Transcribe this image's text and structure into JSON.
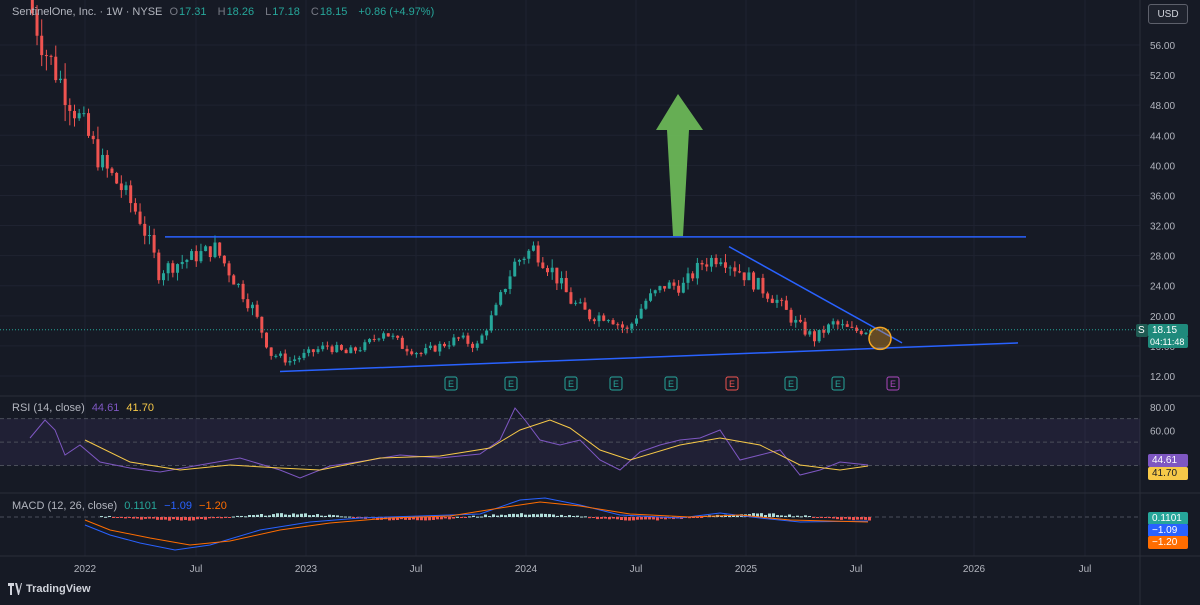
{
  "header": {
    "symbol": "SentinelOne, Inc. · 1W · NYSE",
    "open_label": "O",
    "open": "17.31",
    "high_label": "H",
    "high": "18.26",
    "low_label": "L",
    "low": "17.18",
    "close_label": "C",
    "close": "18.15",
    "change": "+0.86 (+4.97%)"
  },
  "currency_button": "USD",
  "price_axis": [
    "56.00",
    "52.00",
    "48.00",
    "44.00",
    "40.00",
    "36.00",
    "32.00",
    "28.00",
    "24.00",
    "20.00",
    "16.00",
    "12.00"
  ],
  "price_badge": {
    "symbol": "S",
    "price": "18.15",
    "countdown": "04:11:48"
  },
  "earnings_markers": [
    "E",
    "E",
    "E",
    "E",
    "E",
    "E",
    "E",
    "E",
    "E"
  ],
  "time_axis": [
    "2022",
    "Jul",
    "2023",
    "Jul",
    "2024",
    "Jul",
    "2025",
    "Jul",
    "2026",
    "Jul"
  ],
  "rsi": {
    "label": "RSI (14, close)",
    "value": "44.61",
    "ma": "41.70",
    "axis": [
      "80.00",
      "60.00"
    ]
  },
  "macd": {
    "label": "MACD (12, 26, close)",
    "hist": "0.1101",
    "macd": "−1.09",
    "signal": "−1.20"
  },
  "brand": "TradingView",
  "colors": {
    "background": "#161a25",
    "up": "#26a69a",
    "down": "#ef5350",
    "trendline": "#2962ff",
    "arrow": "#6fbf5a",
    "circle": "#f5a623",
    "rsi_line": "#7e57c2",
    "rsi_ma": "#f7c948",
    "macd": "#2962ff",
    "signal": "#ff6d00"
  },
  "chart_data": {
    "type": "candlestick",
    "title": "SentinelOne, Inc. · 1W · NYSE",
    "ylim": [
      10.5,
      58.5
    ],
    "x": [
      "2021-10",
      "2021-11",
      "2021-12",
      "2022-01",
      "2022-02",
      "2022-03",
      "2022-04",
      "2022-05",
      "2022-06",
      "2022-07",
      "2022-08",
      "2022-09",
      "2022-10",
      "2022-11",
      "2022-12",
      "2023-01",
      "2023-02",
      "2023-03",
      "2023-04",
      "2023-05",
      "2023-06",
      "2023-07",
      "2023-08",
      "2023-09",
      "2023-10",
      "2023-11",
      "2023-12",
      "2024-01",
      "2024-02",
      "2024-03",
      "2024-04",
      "2024-05",
      "2024-06",
      "2024-07",
      "2024-08",
      "2024-09",
      "2024-10",
      "2024-11",
      "2024-12",
      "2025-01",
      "2025-02",
      "2025-03",
      "2025-04",
      "2025-05",
      "2025-06",
      "2025-07"
    ],
    "close": [
      62,
      55,
      50,
      45,
      40,
      37,
      33,
      26,
      27,
      28,
      29,
      25,
      21,
      15,
      14,
      15,
      16,
      15,
      16,
      18,
      16,
      15,
      16,
      17,
      16,
      21,
      27,
      29,
      26,
      22,
      20,
      20,
      18,
      22,
      24,
      24,
      27,
      28,
      26,
      24,
      22,
      19,
      17,
      19,
      18,
      18.15
    ],
    "pattern": {
      "resistance": [
        [
          "2022-03",
          30.5
        ],
        [
          "2025-08",
          30.5
        ]
      ],
      "support": [
        [
          "2022-11",
          12.6
        ],
        [
          "2026-04",
          16.4
        ]
      ],
      "downtrend": [
        [
          "2024-12",
          29.2
        ],
        [
          "2025-09",
          16.4
        ]
      ]
    },
    "rsi": {
      "value": 44.61,
      "ma": 41.7
    },
    "macd": {
      "hist": 0.1101,
      "macd": -1.09,
      "signal": -1.2
    }
  }
}
